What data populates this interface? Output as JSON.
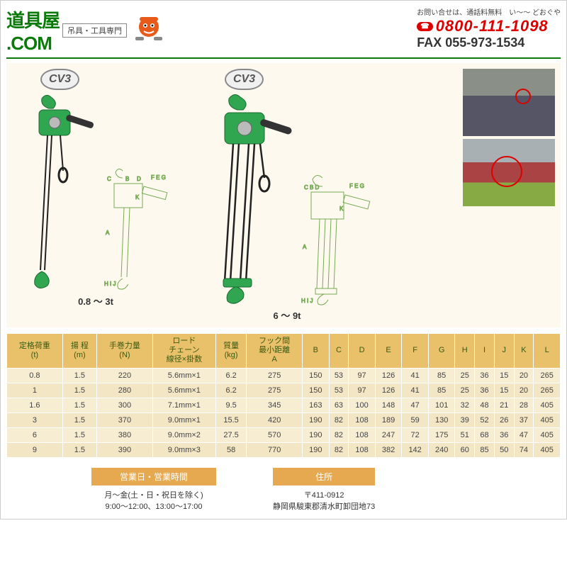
{
  "header": {
    "logo_line1": "道具屋",
    "logo_line2": ".COM",
    "tagline": "吊具・工具専門",
    "ruby": "い～～ どおぐや",
    "contact_note": "お問い合せは、通話料無料",
    "phone_label": "☎",
    "phone": "0800-111-1098",
    "fax": "FAX 055-973-1534"
  },
  "product": {
    "badge": "CV3",
    "range_a": "0.8 ～ 3t",
    "range_b": "6 ～ 9t",
    "hoist_body_color": "#2fa64f",
    "hoist_handle_color": "#333333",
    "chain_color": "#222222",
    "hook_color": "#2fa64f",
    "diagram_background": "#fdf9ef"
  },
  "table": {
    "headers": [
      "定格荷重\n(t)",
      "揚 程\n(m)",
      "手巻力量\n(N)",
      "ロード\nチェーン\n線径×掛数",
      "質量\n(kg)",
      "フック間\n最小距離\nA",
      "B",
      "C",
      "D",
      "E",
      "F",
      "G",
      "H",
      "I",
      "J",
      "K",
      "L"
    ],
    "rows": [
      [
        "0.8",
        "1.5",
        "220",
        "5.6mm×1",
        "6.2",
        "275",
        "150",
        "53",
        "97",
        "126",
        "41",
        "85",
        "25",
        "36",
        "15",
        "20",
        "265"
      ],
      [
        "1",
        "1.5",
        "280",
        "5.6mm×1",
        "6.2",
        "275",
        "150",
        "53",
        "97",
        "126",
        "41",
        "85",
        "25",
        "36",
        "15",
        "20",
        "265"
      ],
      [
        "1.6",
        "1.5",
        "300",
        "7.1mm×1",
        "9.5",
        "345",
        "163",
        "63",
        "100",
        "148",
        "47",
        "101",
        "32",
        "48",
        "21",
        "28",
        "405"
      ],
      [
        "3",
        "1.5",
        "370",
        "9.0mm×1",
        "15.5",
        "420",
        "190",
        "82",
        "108",
        "189",
        "59",
        "130",
        "39",
        "52",
        "26",
        "37",
        "405"
      ],
      [
        "6",
        "1.5",
        "380",
        "9.0mm×2",
        "27.5",
        "570",
        "190",
        "82",
        "108",
        "247",
        "72",
        "175",
        "51",
        "68",
        "36",
        "47",
        "405"
      ],
      [
        "9",
        "1.5",
        "390",
        "9.0mm×3",
        "58",
        "770",
        "190",
        "82",
        "108",
        "382",
        "142",
        "240",
        "60",
        "85",
        "50",
        "74",
        "405"
      ]
    ],
    "header_bg": "#e9c16a",
    "header_text": "#3a5a12",
    "row_bg_odd": "#f7edd2",
    "row_bg_even": "#f3e6c4"
  },
  "footer": {
    "hours_head": "営業日・営業時間",
    "hours_line1": "月～金(土・日・祝日を除く)",
    "hours_line2": "9:00～12:00、13:00～17:00",
    "address_head": "住所",
    "address_line1": "〒411-0912",
    "address_line2": "静岡県駿東郡清水町卸団地73",
    "head_bg": "#e6a94f"
  }
}
